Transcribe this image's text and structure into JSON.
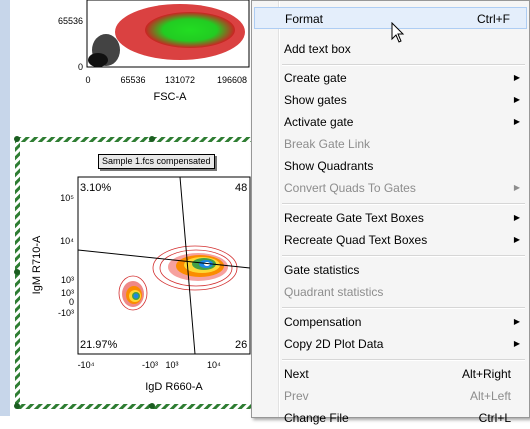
{
  "top_plot": {
    "y_ticks": [
      "65536",
      "0"
    ],
    "x_ticks": [
      "0",
      "65536",
      "131072",
      "196608"
    ],
    "x_label": "FSC-A"
  },
  "bottom_plot": {
    "sample_label": "Sample 1.fcs compensated",
    "y_label": "IgM R710-A",
    "x_label": "IgD R660-A",
    "y_ticks": [
      "10⁵",
      "10⁴",
      "10³",
      "10³",
      "0",
      "-10³"
    ],
    "x_ticks": [
      "-10⁴",
      "-10³",
      "10³",
      "10⁴"
    ],
    "quadrants": {
      "top_left": "3.10%",
      "top_right": "48",
      "bottom_left": "21.97%",
      "bottom_right": "26"
    }
  },
  "context_menu": {
    "items": [
      {
        "label": "Format",
        "shortcut": "Ctrl+F",
        "disabled": false,
        "submenu": false
      },
      {
        "label": "Add text box",
        "shortcut": "",
        "disabled": false,
        "submenu": false
      },
      {
        "label": "Create gate",
        "shortcut": "",
        "disabled": false,
        "submenu": true
      },
      {
        "label": "Show gates",
        "shortcut": "",
        "disabled": false,
        "submenu": true
      },
      {
        "label": "Activate gate",
        "shortcut": "",
        "disabled": false,
        "submenu": true
      },
      {
        "label": "Break Gate Link",
        "shortcut": "",
        "disabled": true,
        "submenu": false
      },
      {
        "label": "Show Quadrants",
        "shortcut": "",
        "disabled": false,
        "submenu": false
      },
      {
        "label": "Convert Quads To Gates",
        "shortcut": "",
        "disabled": true,
        "submenu": true
      },
      {
        "label": "Recreate Gate Text Boxes",
        "shortcut": "",
        "disabled": false,
        "submenu": true
      },
      {
        "label": "Recreate Quad Text Boxes",
        "shortcut": "",
        "disabled": false,
        "submenu": true
      },
      {
        "label": "Gate statistics",
        "shortcut": "",
        "disabled": false,
        "submenu": false
      },
      {
        "label": "Quadrant statistics",
        "shortcut": "",
        "disabled": true,
        "submenu": false
      },
      {
        "label": "Compensation",
        "shortcut": "",
        "disabled": false,
        "submenu": true
      },
      {
        "label": "Copy 2D Plot Data",
        "shortcut": "",
        "disabled": false,
        "submenu": true
      },
      {
        "label": "Next",
        "shortcut": "Alt+Right",
        "disabled": false,
        "submenu": false
      },
      {
        "label": "Prev",
        "shortcut": "Alt+Left",
        "disabled": true,
        "submenu": false
      },
      {
        "label": "Change File",
        "shortcut": "Ctrl+L",
        "disabled": false,
        "submenu": false
      }
    ]
  },
  "colors": {
    "menu_bg": "#f5f5f5",
    "highlight": "#e4eefb",
    "selection_hatch": "#2e7d32"
  }
}
